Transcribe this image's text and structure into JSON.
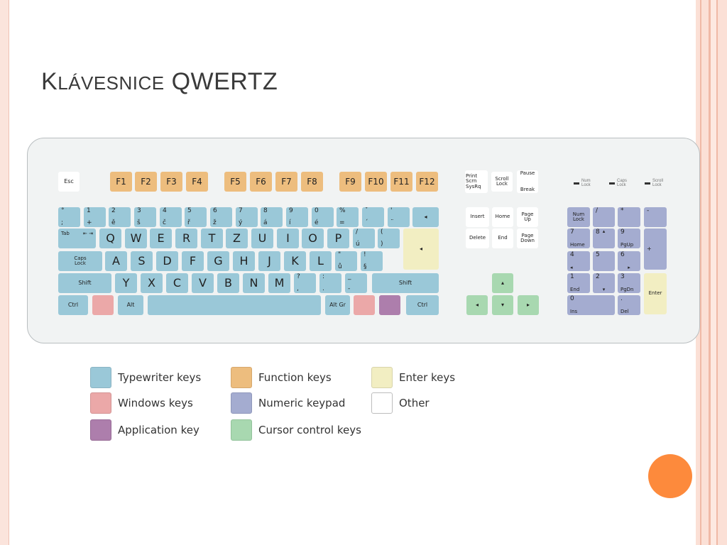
{
  "slide": {
    "title_cap": "K",
    "title_smallcaps": "LÁVESNICE",
    "title_rest": " QWERTZ"
  },
  "colors": {
    "typewriter": "#9ac8d8",
    "function": "#edbd7e",
    "enter": "#f2eec2",
    "windows": "#eba8a8",
    "numeric": "#a4acd0",
    "other": "#ffffff",
    "application": "#ad7eac",
    "cursor": "#a8d8b0",
    "accent_dot": "#fd8a3c"
  },
  "keyboard": {
    "esc": "Esc",
    "f1": "F1",
    "f2": "F2",
    "f3": "F3",
    "f4": "F4",
    "f5": "F5",
    "f6": "F6",
    "f7": "F7",
    "f8": "F8",
    "f9": "F9",
    "f10": "F10",
    "f11": "F11",
    "f12": "F12",
    "print_scrn": "Print Scrn SysRq",
    "scroll_lock": "Scroll Lock",
    "pause": "Pause",
    "break": "Break",
    "ind_num": "Num Lock",
    "ind_caps": "Caps Lock",
    "ind_scroll": "Scroll Lock",
    "row1": [
      {
        "top": "°",
        "bottom": ";"
      },
      {
        "top": "1",
        "bottom": "+"
      },
      {
        "top": "2",
        "bottom": "ě"
      },
      {
        "top": "3",
        "bottom": "š"
      },
      {
        "top": "4",
        "bottom": "č"
      },
      {
        "top": "5",
        "bottom": "ř"
      },
      {
        "top": "6",
        "bottom": "ž"
      },
      {
        "top": "7",
        "bottom": "ý"
      },
      {
        "top": "8",
        "bottom": "á"
      },
      {
        "top": "9",
        "bottom": "í"
      },
      {
        "top": "0",
        "bottom": "é"
      },
      {
        "top": "%",
        "bottom": "="
      },
      {
        "top": "ˇ",
        "bottom": "´"
      },
      {
        "top": "'",
        "bottom": "¨"
      }
    ],
    "backspace": "◂",
    "tab": "Tab",
    "tab_arrows": "⇤ ⇥",
    "row2": [
      "Q",
      "W",
      "E",
      "R",
      "T",
      "Z",
      "U",
      "I",
      "O",
      "P"
    ],
    "row2_extra": [
      {
        "top": "/",
        "bottom": "ú"
      },
      {
        "top": "(",
        "bottom": ")"
      }
    ],
    "enter_glyph": "◂",
    "caps": "Caps Lock",
    "row3": [
      "A",
      "S",
      "D",
      "F",
      "G",
      "H",
      "J",
      "K",
      "L"
    ],
    "row3_extra": [
      {
        "top": "\"",
        "bottom": "ů"
      },
      {
        "top": "!",
        "bottom": "§"
      }
    ],
    "shift_left": "Shift",
    "row4": [
      "Y",
      "X",
      "C",
      "V",
      "B",
      "N",
      "M"
    ],
    "row4_extra": [
      {
        "top": "?",
        "bottom": ","
      },
      {
        "top": ":",
        "bottom": "."
      },
      {
        "top": "_",
        "bottom": "-"
      }
    ],
    "shift_right": "Shift",
    "ctrl_left": "Ctrl",
    "alt": "Alt",
    "altgr": "Alt Gr",
    "ctrl_right": "Ctrl",
    "insert": "Insert",
    "home": "Home",
    "page_up": "Page Up",
    "delete": "Delete",
    "end": "End",
    "page_down": "Page Down",
    "arrow_up": "▴",
    "arrow_left": "◂",
    "arrow_down": "▾",
    "arrow_right": "▸",
    "num_lock": "Num Lock",
    "num_div": "/",
    "num_mul": "*",
    "num_minus": "-",
    "num7": "7",
    "num7_sub": "Home",
    "num8": "8",
    "num8_sub": "▴",
    "num9": "9",
    "num9_sub": "PgUp",
    "num_plus": "+",
    "num4": "4",
    "num4_sub": "◂",
    "num5": "5",
    "num6": "6",
    "num6_sub": "▸",
    "num1": "1",
    "num1_sub": "End",
    "num2": "2",
    "num2_sub": "▾",
    "num3": "3",
    "num3_sub": "PgDn",
    "num_enter": "Enter",
    "num0": "0",
    "num0_sub": "Ins",
    "num_dot": ".",
    "num_dot_sub": "Del"
  },
  "legend": [
    {
      "label": "Typewriter keys"
    },
    {
      "label": "Function keys"
    },
    {
      "label": "Enter keys"
    },
    {
      "label": "Windows keys"
    },
    {
      "label": "Numeric keypad"
    },
    {
      "label": "Other"
    },
    {
      "label": "Application key"
    },
    {
      "label": "Cursor control keys"
    }
  ]
}
